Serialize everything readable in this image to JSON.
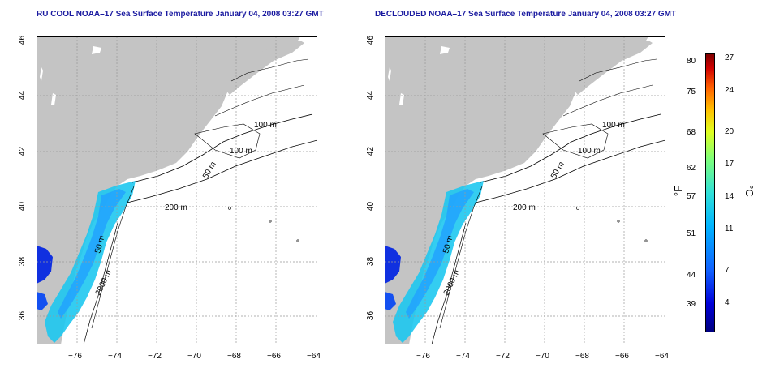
{
  "maps": [
    {
      "title": "RU COOL NOAA–17 Sea Surface Temperature January 04, 2008 03:27 GMT",
      "contours": {
        "c1": "100 m",
        "c2": "100 m",
        "c3": "50 m",
        "c4": "200 m",
        "c5": "50 m",
        "c6": "2000 m"
      }
    },
    {
      "title": "DECLOUDED NOAA–17 Sea Surface Temperature January 04, 2008 03:27 GMT",
      "contours": {
        "c1": "100 m",
        "c2": "100 m",
        "c3": "50 m",
        "c4": "200 m",
        "c5": "50 m",
        "c6": "2000 m"
      }
    }
  ],
  "axes": {
    "lon_ticks": [
      "−76",
      "−74",
      "−72",
      "−70",
      "−68",
      "−66",
      "−64"
    ],
    "lat_ticks": [
      "36",
      "38",
      "40",
      "42",
      "44",
      "46"
    ]
  },
  "colorbar": {
    "f_unit": "°F",
    "c_unit": "°C",
    "f_labels": [
      "80",
      "75",
      "68",
      "62",
      "57",
      "51",
      "44",
      "39"
    ],
    "c_labels": [
      "27",
      "24",
      "20",
      "17",
      "14",
      "11",
      "7",
      "4"
    ]
  },
  "colors": {
    "land": "#c4c4c4",
    "water": "#ffffff",
    "title": "#1a1aa0"
  }
}
